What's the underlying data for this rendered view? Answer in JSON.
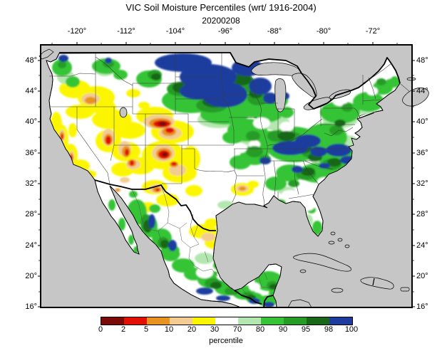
{
  "title": "VIC Soil Moisture Percentiles (wrt/ 1916-2004)",
  "subtitle_date": "20200208",
  "axes": {
    "top_longitude_labels": [
      "-120°",
      "-112°",
      "-104°",
      "-96°",
      "-88°",
      "-80°",
      "-72°"
    ],
    "left_latitude_labels": [
      "48°",
      "44°",
      "40°",
      "36°",
      "32°",
      "28°",
      "24°",
      "20°",
      "16°"
    ],
    "right_latitude_labels": [
      "48°",
      "44°",
      "40°",
      "36°",
      "32°",
      "28°",
      "24°",
      "20°",
      "16°"
    ]
  },
  "colorbar": {
    "label": "percentile",
    "tick_values": [
      "0",
      "2",
      "5",
      "10",
      "20",
      "30",
      "70",
      "80",
      "90",
      "95",
      "98",
      "100"
    ],
    "segment_colors": [
      "#7A0B08",
      "#E21104",
      "#E8921F",
      "#F3CC92",
      "#FBF600",
      "#FFFFFF",
      "#B3E7AF",
      "#36C436",
      "#259C25",
      "#186818",
      "#1D3C9E"
    ]
  },
  "map": {
    "background_color": "#C6C6C6",
    "land_color": "#FFFFFF",
    "border_color": "#000000",
    "observations": [
      {
        "region": "SW Wyoming / NW Colorado",
        "percentile_range": "0-5"
      },
      {
        "region": "Central Colorado",
        "percentile_range": "0-10"
      },
      {
        "region": "Great Basin (Nevada / Utah)",
        "percentile_range": "5-30"
      },
      {
        "region": "Oregon / southern Idaho",
        "percentile_range": "20-30"
      },
      {
        "region": "California coast ranges",
        "percentile_range": "5-30"
      },
      {
        "region": "Northern Montana / Dakotas / Minnesota",
        "percentile_range": "98-100"
      },
      {
        "region": "Ohio Valley / Kentucky / Tennessee",
        "percentile_range": "95-100"
      },
      {
        "region": "Virginia / Carolinas",
        "percentile_range": "95-100"
      },
      {
        "region": "Midwest and Northeast",
        "percentile_range": "70-98"
      },
      {
        "region": "South Texas / Rio Grande",
        "percentile_range": "10-30"
      },
      {
        "region": "Northeastern Mexico",
        "percentile_range": "20-30"
      },
      {
        "region": "Sierra Madre and southern Mexico coast",
        "percentile_range": "80-100"
      },
      {
        "region": "Northern Maine",
        "percentile_range": "20-30"
      }
    ]
  }
}
